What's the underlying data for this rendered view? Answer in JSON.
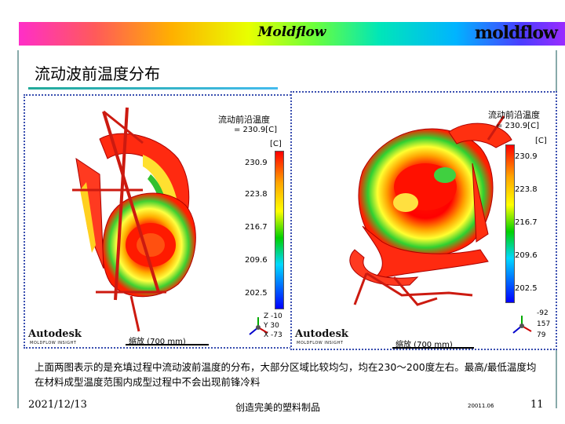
{
  "header": {
    "title": "Moldflow",
    "logo": "moldflow"
  },
  "page": {
    "title": "流动波前温度分布"
  },
  "panels": [
    {
      "legend_title": "流动前沿温度",
      "legend_sub": "= 230.9[C]",
      "unit": "[C]",
      "ticks": [
        "230.9",
        "223.8",
        "216.7",
        "209.6",
        "202.5"
      ],
      "brand": "Autodesk",
      "brand_sub": "MOLDFLOW INSIGHT",
      "scale_label": "缩放 (700 mm)",
      "axis": [
        "Z -10",
        "Y 30",
        "X -73"
      ]
    },
    {
      "legend_title": "流动前沿温度",
      "legend_sub": "= 230.9[C]",
      "unit": "[C]",
      "ticks": [
        "230.9",
        "223.8",
        "216.7",
        "209.6",
        "202.5"
      ],
      "brand": "Autodesk",
      "brand_sub": "MOLDFLOW INSIGHT",
      "scale_label": "缩放 (700 mm)",
      "axis": [
        "-92",
        "157",
        "79"
      ]
    }
  ],
  "caption": "上面两图表示的是充填过程中流动波前温度的分布，大部分区域比较均匀，均在230～200度左右。最高/最低温度均在材料成型温度范围内成型过程中不会出现前锋冷料",
  "footer": {
    "date": "2021/12/13",
    "center": "创造完美的塑料制品",
    "code": "20011.06",
    "page": "11"
  },
  "colors": {
    "accent_line": "#2a9",
    "panel_border": "#3a4fb0",
    "hot": "#ff0000",
    "warm": "#ffff00",
    "cool": "#00d000"
  }
}
